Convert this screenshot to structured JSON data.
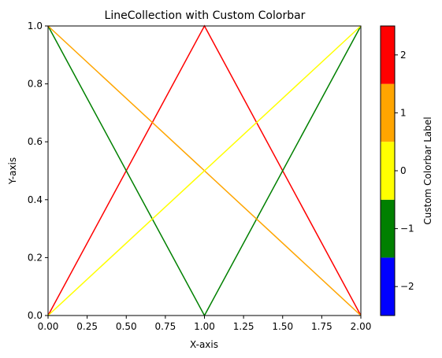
{
  "chart_data": {
    "type": "line",
    "title": "LineCollection with Custom Colorbar",
    "xlabel": "X-axis",
    "ylabel": "Y-axis",
    "xlim": [
      0,
      2
    ],
    "ylim": [
      0,
      1
    ],
    "xticks": [
      "0.00",
      "0.25",
      "0.50",
      "0.75",
      "1.00",
      "1.25",
      "1.50",
      "1.75",
      "2.00"
    ],
    "yticks": [
      "0.0",
      "0.2",
      "0.4",
      "0.6",
      "0.8",
      "1.0"
    ],
    "grid": false,
    "series": [
      {
        "color": "#ff0000",
        "x": [
          0,
          1,
          2
        ],
        "y": [
          0,
          1,
          0
        ]
      },
      {
        "color": "#008000",
        "x": [
          0,
          1,
          2
        ],
        "y": [
          1,
          0,
          1
        ]
      },
      {
        "color": "#ffa500",
        "x": [
          0,
          2
        ],
        "y": [
          1,
          0
        ]
      },
      {
        "color": "#ffff00",
        "x": [
          0,
          2
        ],
        "y": [
          0,
          1
        ]
      }
    ],
    "colorbar": {
      "label": "Custom Colorbar Label",
      "range": [
        -2.5,
        2.5
      ],
      "ticks": [
        "−2",
        "−1",
        "0",
        "1",
        "2"
      ],
      "tick_values": [
        -2,
        -1,
        0,
        1,
        2
      ],
      "bins": [
        {
          "from": -2.5,
          "to": -1.5,
          "color": "#0000ff"
        },
        {
          "from": -1.5,
          "to": -0.5,
          "color": "#008000"
        },
        {
          "from": -0.5,
          "to": 0.5,
          "color": "#ffff00"
        },
        {
          "from": 0.5,
          "to": 1.5,
          "color": "#ffa500"
        },
        {
          "from": 1.5,
          "to": 2.5,
          "color": "#ff0000"
        }
      ]
    }
  }
}
